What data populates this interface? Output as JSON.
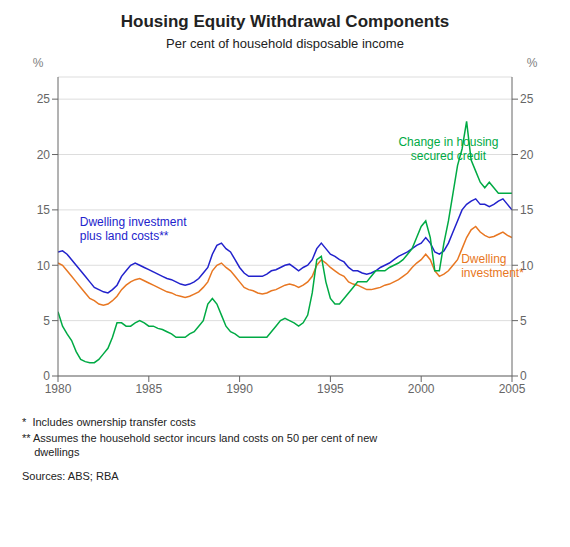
{
  "chart_data": {
    "type": "line",
    "title": "Housing Equity Withdrawal Components",
    "subtitle": "Per cent of household disposable income",
    "y_label": "%",
    "y2_label": "%",
    "footnotes": [
      "*  Includes ownership transfer costs",
      "** Assumes the household sector incurs land costs on 50 per cent of new\n    dwellings",
      "Sources: ABS; RBA"
    ],
    "xlim": [
      1980,
      2005
    ],
    "xticks": [
      1980,
      1985,
      1990,
      1995,
      2000,
      2005
    ],
    "ylim": [
      0,
      27
    ],
    "yticks": [
      0,
      5,
      10,
      15,
      20,
      25
    ],
    "y2lim": [
      0,
      27
    ],
    "y2ticks": [
      0,
      5,
      10,
      15,
      20,
      25
    ],
    "grid": true,
    "annotations": [
      {
        "text": "Change in housing\nsecured credit",
        "x": 2001.5,
        "y": 21.8,
        "color": "#00AA44"
      },
      {
        "text": "Dwelling investment\nplus land costs**",
        "x": 1981.2,
        "y": 14.5,
        "color": "#2222CC"
      },
      {
        "text": "Dwelling\ninvestment*",
        "x": 2002.2,
        "y": 11.2,
        "color": "#E87722"
      }
    ],
    "x": [
      1980.0,
      1980.25,
      1980.5,
      1980.75,
      1981.0,
      1981.25,
      1981.5,
      1981.75,
      1982.0,
      1982.25,
      1982.5,
      1982.75,
      1983.0,
      1983.25,
      1983.5,
      1983.75,
      1984.0,
      1984.25,
      1984.5,
      1984.75,
      1985.0,
      1985.25,
      1985.5,
      1985.75,
      1986.0,
      1986.25,
      1986.5,
      1986.75,
      1987.0,
      1987.25,
      1987.5,
      1987.75,
      1988.0,
      1988.25,
      1988.5,
      1988.75,
      1989.0,
      1989.25,
      1989.5,
      1989.75,
      1990.0,
      1990.25,
      1990.5,
      1990.75,
      1991.0,
      1991.25,
      1991.5,
      1991.75,
      1992.0,
      1992.25,
      1992.5,
      1992.75,
      1993.0,
      1993.25,
      1993.5,
      1993.75,
      1994.0,
      1994.25,
      1994.5,
      1994.75,
      1995.0,
      1995.25,
      1995.5,
      1995.75,
      1996.0,
      1996.25,
      1996.5,
      1996.75,
      1997.0,
      1997.25,
      1997.5,
      1997.75,
      1998.0,
      1998.25,
      1998.5,
      1998.75,
      1999.0,
      1999.25,
      1999.5,
      1999.75,
      2000.0,
      2000.25,
      2000.5,
      2000.75,
      2001.0,
      2001.25,
      2001.5,
      2001.75,
      2002.0,
      2002.25,
      2002.5,
      2002.75,
      2003.0,
      2003.25,
      2003.5,
      2003.75,
      2004.0,
      2004.25,
      2004.5,
      2004.75,
      2005.0
    ],
    "series": [
      {
        "color": "#E87722",
        "values": [
          10.2,
          10.0,
          9.5,
          9.0,
          8.5,
          8.0,
          7.5,
          7.0,
          6.8,
          6.5,
          6.4,
          6.5,
          6.8,
          7.2,
          7.8,
          8.2,
          8.5,
          8.7,
          8.8,
          8.6,
          8.4,
          8.2,
          8.0,
          7.8,
          7.6,
          7.5,
          7.3,
          7.2,
          7.1,
          7.2,
          7.4,
          7.6,
          8.0,
          8.5,
          9.5,
          10.0,
          10.2,
          9.8,
          9.5,
          9.0,
          8.5,
          8.0,
          7.8,
          7.7,
          7.5,
          7.4,
          7.5,
          7.7,
          7.8,
          8.0,
          8.2,
          8.3,
          8.2,
          8.0,
          8.2,
          8.5,
          9.0,
          10.0,
          10.5,
          10.2,
          9.8,
          9.5,
          9.2,
          9.0,
          8.5,
          8.3,
          8.2,
          8.0,
          7.8,
          7.8,
          7.9,
          8.0,
          8.2,
          8.3,
          8.5,
          8.7,
          9.0,
          9.3,
          9.8,
          10.2,
          10.5,
          11.0,
          10.5,
          9.5,
          9.0,
          9.2,
          9.5,
          10.0,
          10.5,
          11.5,
          12.5,
          13.2,
          13.5,
          13.0,
          12.7,
          12.5,
          12.6,
          12.8,
          13.0,
          12.7,
          12.5
        ]
      },
      {
        "color": "#2222CC",
        "values": [
          11.2,
          11.3,
          11.0,
          10.5,
          10.0,
          9.5,
          9.0,
          8.5,
          8.0,
          7.8,
          7.6,
          7.5,
          7.8,
          8.2,
          9.0,
          9.5,
          10.0,
          10.2,
          10.0,
          9.8,
          9.6,
          9.4,
          9.2,
          9.0,
          8.8,
          8.7,
          8.5,
          8.3,
          8.2,
          8.3,
          8.5,
          8.8,
          9.3,
          9.8,
          11.0,
          11.8,
          12.0,
          11.5,
          11.2,
          10.5,
          9.8,
          9.3,
          9.0,
          9.0,
          9.0,
          9.0,
          9.2,
          9.5,
          9.6,
          9.8,
          10.0,
          10.1,
          9.8,
          9.5,
          9.8,
          10.0,
          10.5,
          11.5,
          12.0,
          11.5,
          11.0,
          10.8,
          10.5,
          10.3,
          9.8,
          9.5,
          9.5,
          9.3,
          9.2,
          9.3,
          9.5,
          9.8,
          10.0,
          10.2,
          10.5,
          10.8,
          11.0,
          11.2,
          11.5,
          11.8,
          12.0,
          12.5,
          12.0,
          11.2,
          11.0,
          11.3,
          12.0,
          13.0,
          14.0,
          15.0,
          15.5,
          15.8,
          16.0,
          15.5,
          15.5,
          15.3,
          15.5,
          15.8,
          16.0,
          15.5,
          15.0
        ]
      },
      {
        "color": "#00AA44",
        "values": [
          5.8,
          4.5,
          3.8,
          3.2,
          2.2,
          1.5,
          1.3,
          1.2,
          1.2,
          1.5,
          2.0,
          2.5,
          3.5,
          4.8,
          4.8,
          4.5,
          4.5,
          4.8,
          5.0,
          4.8,
          4.5,
          4.5,
          4.3,
          4.2,
          4.0,
          3.8,
          3.5,
          3.5,
          3.5,
          3.8,
          4.0,
          4.5,
          5.0,
          6.5,
          7.0,
          6.5,
          5.5,
          4.5,
          4.0,
          3.8,
          3.5,
          3.5,
          3.5,
          3.5,
          3.5,
          3.5,
          3.5,
          4.0,
          4.5,
          5.0,
          5.2,
          5.0,
          4.8,
          4.5,
          4.8,
          5.5,
          7.5,
          10.5,
          10.8,
          8.5,
          7.0,
          6.5,
          6.5,
          7.0,
          7.5,
          8.0,
          8.5,
          8.5,
          8.5,
          9.0,
          9.5,
          9.5,
          9.5,
          9.8,
          10.0,
          10.2,
          10.5,
          11.0,
          11.5,
          12.5,
          13.5,
          14.0,
          12.5,
          9.5,
          9.5,
          12.0,
          14.0,
          16.5,
          19.0,
          20.5,
          23.0,
          19.5,
          18.5,
          17.5,
          17.0,
          17.5,
          17.0,
          16.5,
          16.5,
          16.5,
          16.5
        ]
      }
    ]
  }
}
